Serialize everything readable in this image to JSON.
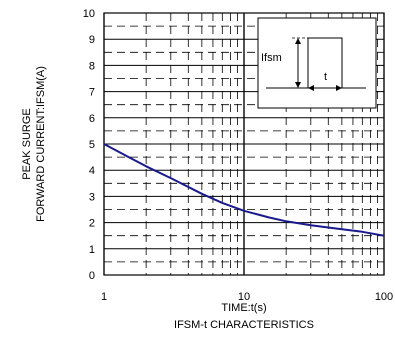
{
  "chart_data": {
    "type": "line",
    "title": "IFSM-t CHARACTERISTICS",
    "xlabel": "TIME:t(s)",
    "ylabel_lines": [
      "PEAK SURGE",
      "FORWARD CURRENT:IFSM(A)"
    ],
    "x_scale": "log",
    "xlim": [
      1,
      100
    ],
    "ylim": [
      0,
      10
    ],
    "x_tick_labels": [
      "1",
      "10",
      "100"
    ],
    "y_tick_labels": [
      "0",
      "1",
      "2",
      "3",
      "4",
      "5",
      "6",
      "7",
      "8",
      "9",
      "10"
    ],
    "grid": true,
    "series": [
      {
        "color": "#1a1a8c",
        "x": [
          1,
          1.5,
          2,
          3,
          5,
          7,
          10,
          15,
          20,
          30,
          50,
          70,
          100
        ],
        "y": [
          5.0,
          4.5,
          4.15,
          3.7,
          3.1,
          2.75,
          2.45,
          2.2,
          2.05,
          1.9,
          1.75,
          1.65,
          1.5
        ]
      }
    ],
    "inset": {
      "label_ifsm": "Ifsm",
      "label_t": "t"
    }
  }
}
